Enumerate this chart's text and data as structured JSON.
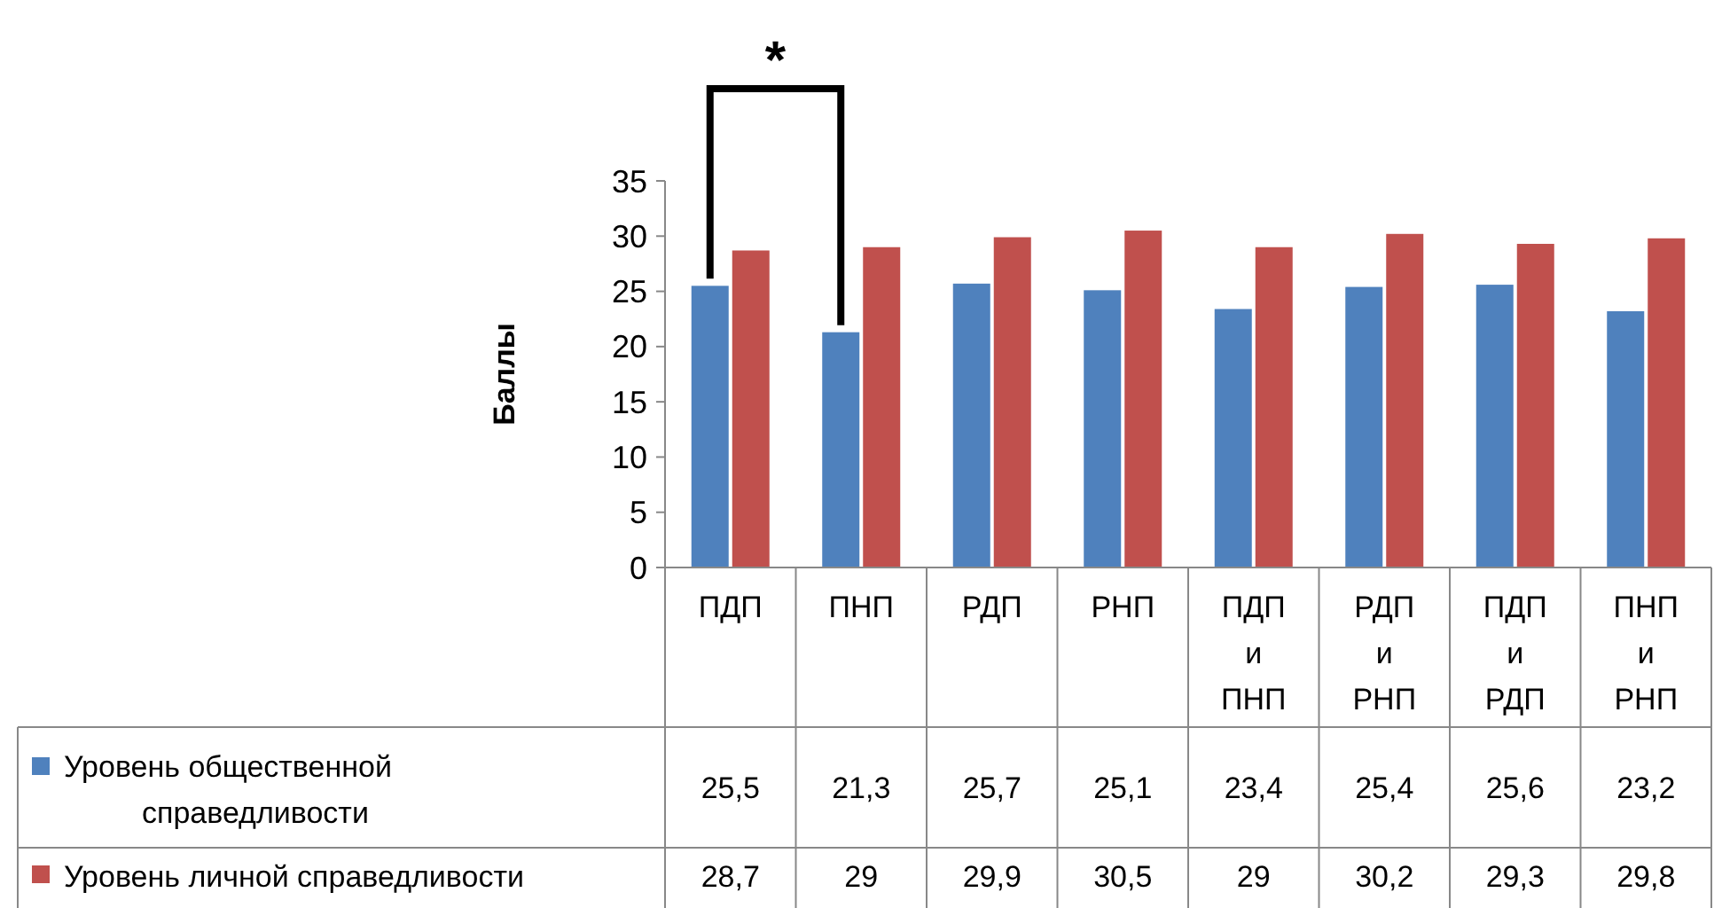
{
  "chart_data": {
    "type": "bar",
    "ylabel": "Баллы",
    "categories": [
      "ПДП",
      "ПНП",
      "РДП",
      "РНП",
      "ПДП и ПНП",
      "РДП и РНП",
      "ПДП и РДП",
      "ПНП и РНП"
    ],
    "series": [
      {
        "name": "Уровень общественной справедливости",
        "color": "#4f81bd",
        "values": [
          25.5,
          21.3,
          25.7,
          25.1,
          23.4,
          25.4,
          25.6,
          23.2
        ],
        "value_labels": [
          "25,5",
          "21,3",
          "25,7",
          "25,1",
          "23,4",
          "25,4",
          "25,6",
          "23,2"
        ]
      },
      {
        "name": "Уровень личной справедливости",
        "color": "#c0504d",
        "values": [
          28.7,
          29,
          29.9,
          30.5,
          29,
          30.2,
          29.3,
          29.8
        ],
        "value_labels": [
          "28,7",
          "29",
          "29,9",
          "30,5",
          "29",
          "30,2",
          "29,3",
          "29,8"
        ]
      }
    ],
    "ylim": [
      0,
      35
    ],
    "yticks": [
      0,
      5,
      10,
      15,
      20,
      25,
      30,
      35
    ],
    "grid": false,
    "legend": "bottom left",
    "annotations": [
      "*"
    ]
  }
}
